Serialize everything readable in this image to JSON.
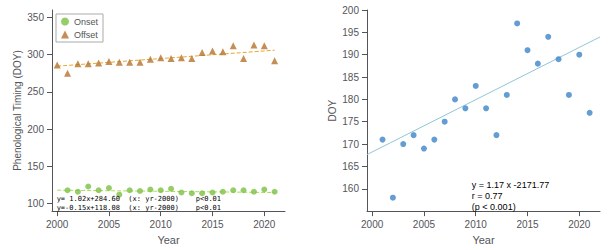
{
  "chart_data": [
    {
      "type": "scatter",
      "xlabel": "Year",
      "ylabel": "Phenological Timing (DOY)",
      "xlim": [
        1999.5,
        2022
      ],
      "xticks": [
        2000,
        2005,
        2010,
        2015,
        2020
      ],
      "ylim": [
        90,
        360
      ],
      "yticks": [
        100,
        150,
        200,
        250,
        300,
        350
      ],
      "grid": false,
      "legend": "upper left",
      "series": [
        {
          "name": "Onset",
          "color": "#7dc142",
          "marker": "circle",
          "x": [
            2001,
            2002,
            2003,
            2004,
            2005,
            2006,
            2007,
            2008,
            2009,
            2010,
            2011,
            2012,
            2013,
            2014,
            2015,
            2016,
            2017,
            2018,
            2019,
            2020,
            2021
          ],
          "values": [
            118,
            116,
            123,
            118,
            121,
            112,
            118,
            117,
            119,
            118,
            120,
            115,
            114,
            114,
            115,
            116,
            118,
            118,
            116,
            119,
            116
          ]
        },
        {
          "name": "Offset",
          "color": "#b5722a",
          "marker": "triangle",
          "x": [
            2000,
            2001,
            2002,
            2003,
            2004,
            2005,
            2006,
            2007,
            2008,
            2009,
            2010,
            2011,
            2012,
            2013,
            2014,
            2015,
            2016,
            2017,
            2018,
            2019,
            2020,
            2021
          ],
          "values": [
            286,
            275,
            288,
            288,
            289,
            291,
            290,
            290,
            290,
            294,
            296,
            295,
            296,
            295,
            303,
            305,
            304,
            312,
            295,
            313,
            312,
            292
          ]
        },
        {
          "type": "line",
          "line_style": "dashed",
          "color": "#e8a830",
          "x": [
            2000,
            2021
          ],
          "values": [
            284.6,
            306.02
          ]
        },
        {
          "type": "line",
          "line_style": "dashed",
          "color": "#aadd55",
          "x": [
            2000,
            2021
          ],
          "values": [
            118.08,
            114.93
          ]
        }
      ],
      "annotations": [
        "y= 1.02x+284.60  (x: yr-2000)    p<0.01",
        "y=-0.15x+118.08  (x: yr-2000)    p<0.01"
      ]
    },
    {
      "type": "scatter",
      "xlabel": "Year",
      "ylabel": "DOY",
      "xlim": [
        1999.5,
        2022
      ],
      "xticks": [
        2000,
        2005,
        2010,
        2015,
        2020
      ],
      "ylim": [
        155,
        200
      ],
      "yticks": [
        160,
        165,
        170,
        175,
        180,
        185,
        190,
        195,
        200
      ],
      "grid": false,
      "series": [
        {
          "color": "#3d84c8",
          "marker": "circle",
          "x": [
            2001,
            2002,
            2003,
            2004,
            2005,
            2006,
            2007,
            2008,
            2009,
            2010,
            2011,
            2012,
            2013,
            2014,
            2015,
            2016,
            2017,
            2018,
            2019,
            2020,
            2021
          ],
          "values": [
            171,
            158,
            170,
            172,
            169,
            171,
            175,
            180,
            178,
            183,
            178,
            172,
            181,
            197,
            191,
            188,
            194,
            189,
            181,
            190,
            177
          ]
        },
        {
          "type": "line",
          "line_style": "solid",
          "color": "#92c5d8",
          "x": [
            1999.5,
            2022
          ],
          "values": [
            167.645,
            193.97
          ]
        }
      ],
      "annotations": [
        "y = 1.17 x -2171.77\nr = 0.77\n(p < 0.001)"
      ]
    }
  ]
}
